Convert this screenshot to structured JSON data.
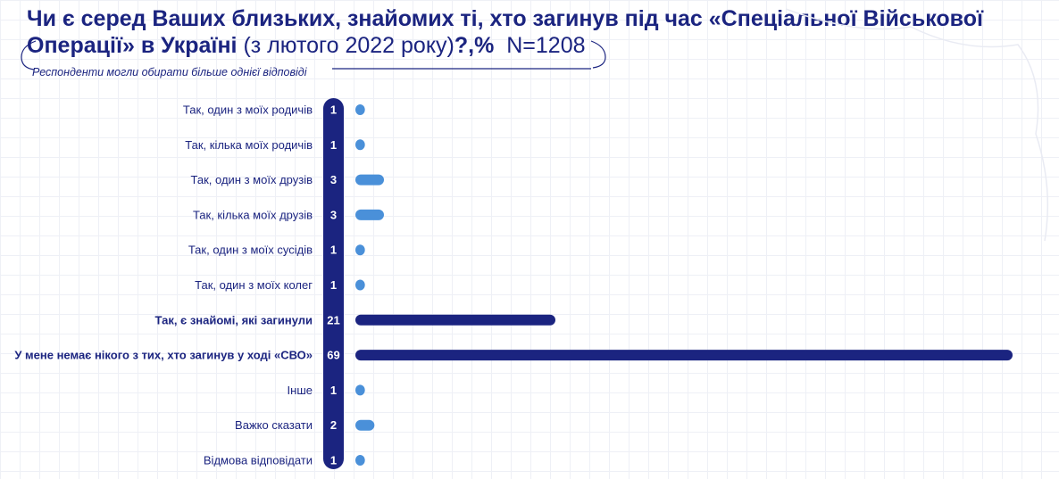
{
  "title": {
    "line1": "Чи є серед Ваших близьких, знайомих ті, хто загинув під час «Спеціальної Військової",
    "line2_bold": "Операції» в Україні",
    "line2_paren": " (з лютого 2022 року)",
    "line2_suffix": "?,%",
    "sample": "N=1208"
  },
  "subtitle": "Респонденти могли обирати більше однієї відповіді",
  "colors": {
    "navy": "#1b2480",
    "light_blue": "#4a90d9",
    "grid": "#eef0f6"
  },
  "chart_data": {
    "type": "bar",
    "orientation": "horizontal",
    "unit": "%",
    "categories": [
      "Так, один з моїх родичів",
      "Так, кілька моїх родичів",
      "Так, один з моїх друзів",
      "Так, кілька моїх друзів",
      "Так, один з моїх сусідів",
      "Так, один з моїх колег",
      "Так, є знайомі, які загинули",
      "У мене немає нікого з тих, хто загинув у ході «СВО»",
      "Інше",
      "Важко сказати",
      "Відмова відповідати"
    ],
    "values": [
      1,
      1,
      3,
      3,
      1,
      1,
      21,
      69,
      1,
      2,
      1
    ],
    "highlighted": [
      false,
      false,
      false,
      false,
      false,
      false,
      true,
      true,
      false,
      false,
      false
    ],
    "xlim": [
      0,
      69
    ],
    "grid": true,
    "legend": "none"
  }
}
